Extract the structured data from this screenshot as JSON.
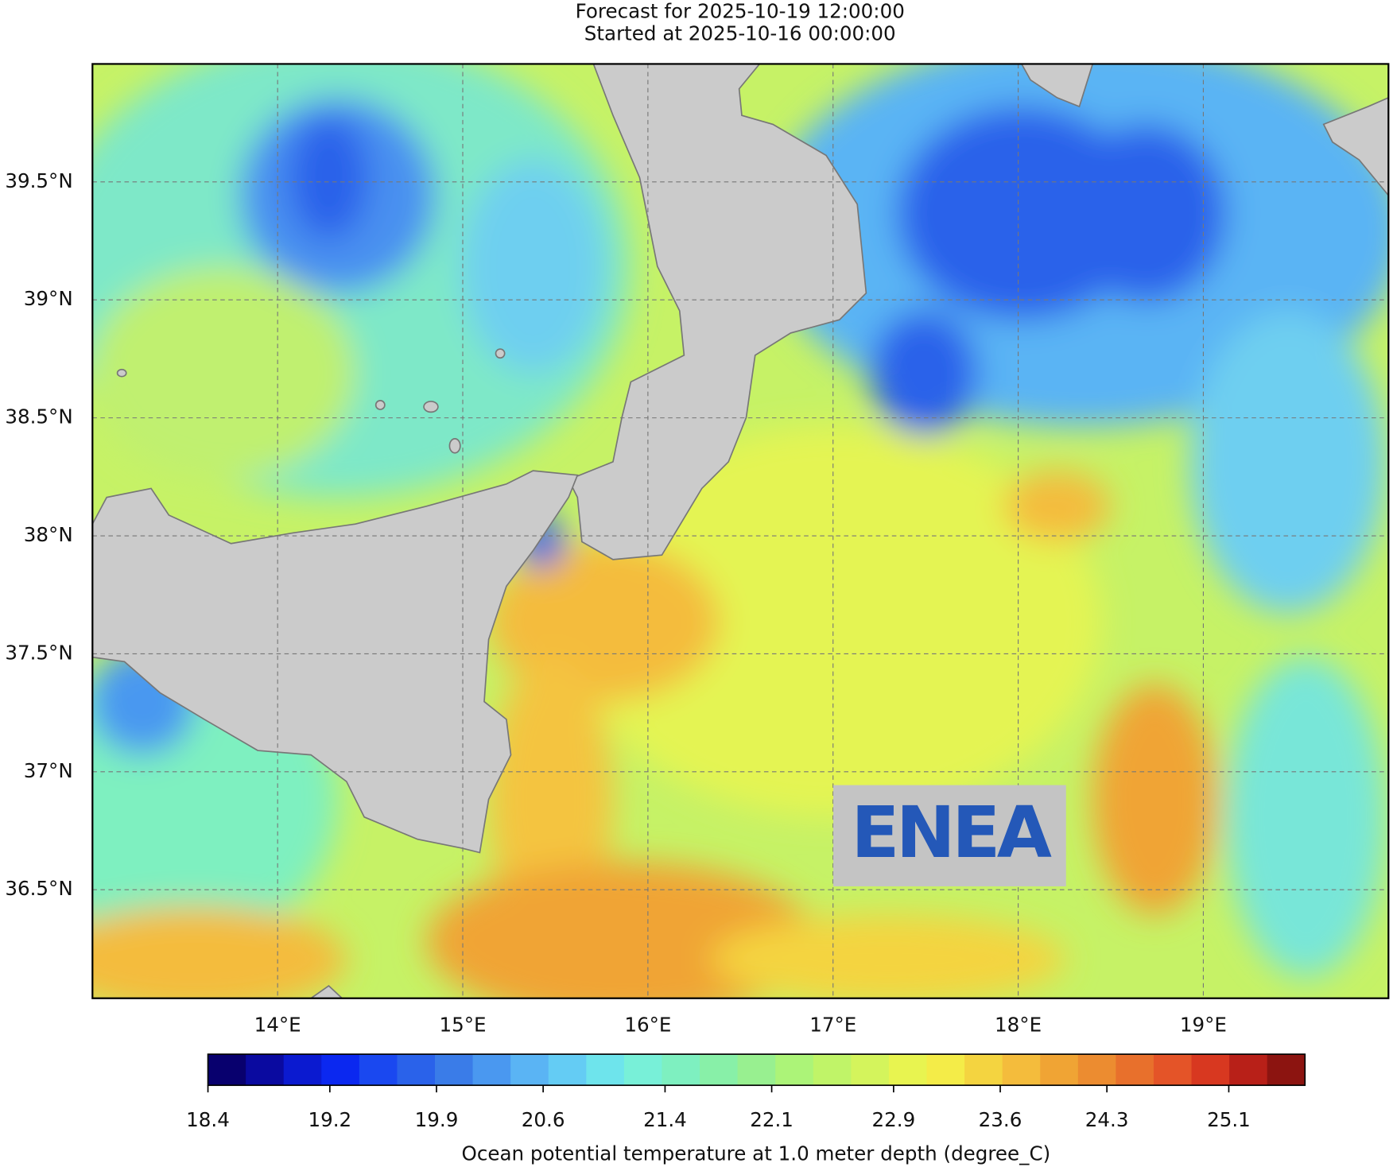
{
  "header": {
    "title": "Forecast for 2025-10-19 12:00:00",
    "subtitle": "Started at 2025-10-16 00:00:00"
  },
  "map": {
    "xlim": [
      13.0,
      20.0
    ],
    "ylim": [
      36.04,
      40.0
    ],
    "lat_ticks": [
      {
        "value": 39.5,
        "label": "39.5°N"
      },
      {
        "value": 39,
        "label": "39°N"
      },
      {
        "value": 38.5,
        "label": "38.5°N"
      },
      {
        "value": 38,
        "label": "38°N"
      },
      {
        "value": 37.5,
        "label": "37.5°N"
      },
      {
        "value": 37,
        "label": "37°N"
      },
      {
        "value": 36.5,
        "label": "36.5°N"
      }
    ],
    "lon_ticks": [
      {
        "value": 14,
        "label": "14°E"
      },
      {
        "value": 15,
        "label": "15°E"
      },
      {
        "value": 16,
        "label": "16°E"
      },
      {
        "value": 17,
        "label": "17°E"
      },
      {
        "value": 18,
        "label": "18°E"
      },
      {
        "value": 19,
        "label": "19°E"
      }
    ],
    "grid": true,
    "logo": "ENEA"
  },
  "colorbar": {
    "label": "Ocean potential temperature at 1.0 meter depth (degree_C)",
    "lim": [
      18.4,
      25.6
    ],
    "ticks": [
      18.4,
      19.2,
      19.9,
      20.6,
      21.4,
      22.1,
      22.9,
      23.6,
      24.3,
      25.1
    ],
    "colors": [
      "#08006e",
      "#0a0aa0",
      "#0b1ad0",
      "#0b28f0",
      "#1a48f0",
      "#2a62ea",
      "#3a7ce8",
      "#4a98f0",
      "#5ab4f4",
      "#64ccf4",
      "#6ee4ec",
      "#78f0d8",
      "#7ef0c0",
      "#88f0a8",
      "#98f090",
      "#acf478",
      "#c0f468",
      "#d4f45c",
      "#e8f450",
      "#f4ec48",
      "#f4d440",
      "#f4bc3c",
      "#f0a434",
      "#ec8c30",
      "#e8702c",
      "#e45428",
      "#d83820",
      "#b82018",
      "#8c1410"
    ]
  }
}
